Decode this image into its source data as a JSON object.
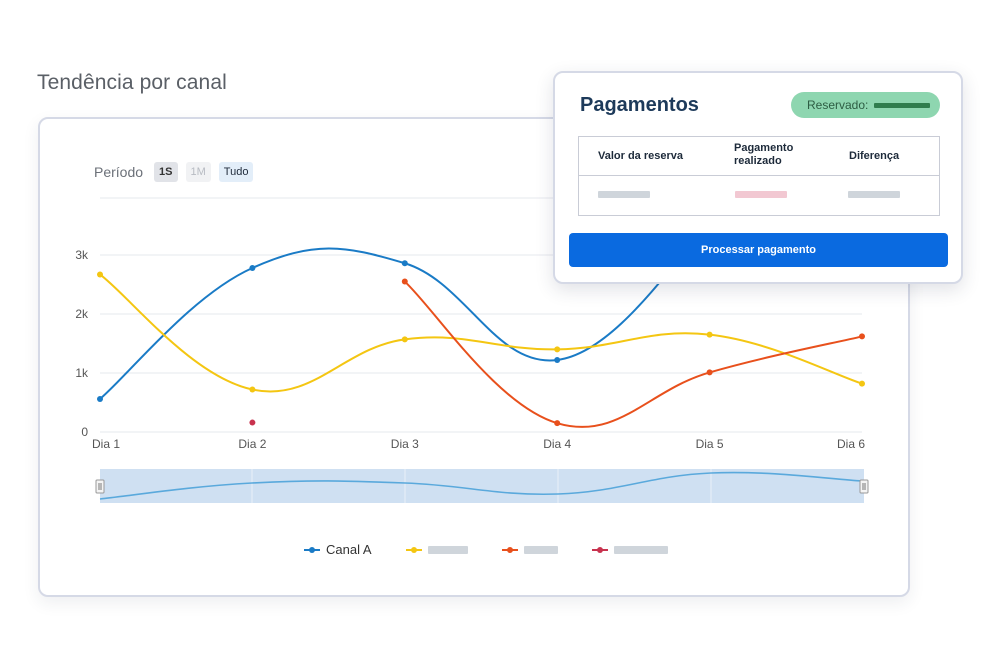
{
  "page": {
    "title": "Tendência por canal"
  },
  "period": {
    "label": "Período",
    "buttons": [
      {
        "label": "1S",
        "state": "active"
      },
      {
        "label": "1M",
        "state": "disabled"
      },
      {
        "label": "Tudo",
        "state": "normal"
      }
    ]
  },
  "chart_data": {
    "type": "line",
    "x": [
      "Dia 1",
      "Dia 2",
      "Dia 3",
      "Dia 4",
      "Dia 5",
      "Dia 6"
    ],
    "y_ticks": [
      "0",
      "1k",
      "2k",
      "3k"
    ],
    "ylim": [
      0,
      3000
    ],
    "grid": true,
    "legend_position": "bottom",
    "series": [
      {
        "name": "Canal A",
        "color": "#1a7bc6",
        "points": [
          [
            0,
            560
          ],
          [
            1,
            2780
          ],
          [
            2,
            2860
          ],
          [
            3,
            1220
          ],
          [
            4,
            3520
          ]
        ]
      },
      {
        "color": "#f4c612",
        "points": [
          [
            0,
            2670
          ],
          [
            1,
            720
          ],
          [
            2,
            1570
          ],
          [
            3,
            1400
          ],
          [
            4,
            1650
          ],
          [
            5,
            820
          ]
        ]
      },
      {
        "color": "#e8501c",
        "points": [
          [
            2,
            2550
          ],
          [
            3,
            150
          ],
          [
            4,
            1010
          ],
          [
            5,
            1620
          ]
        ]
      },
      {
        "color": "#c8324e",
        "points": [
          [
            1,
            160
          ]
        ]
      }
    ],
    "navigator": {
      "fill": "#cfe0f2",
      "line": "#5aa9dc"
    }
  },
  "legend": {
    "items": [
      {
        "label": "Canal A",
        "color": "#1a7bc6"
      },
      {
        "label": "",
        "color": "#f4c612"
      },
      {
        "label": "",
        "color": "#e8501c"
      },
      {
        "label": "",
        "color": "#c8324e"
      }
    ]
  },
  "payment": {
    "title": "Pagamentos",
    "badge_label": "Reservado:",
    "headers": [
      "Valor da reserva",
      "Pagamento realizado",
      "Diferença"
    ],
    "placeholder_colors": [
      "#cfd5db",
      "#f2c8d2",
      "#cfd5db"
    ],
    "button_label": "Processar pagamento"
  }
}
